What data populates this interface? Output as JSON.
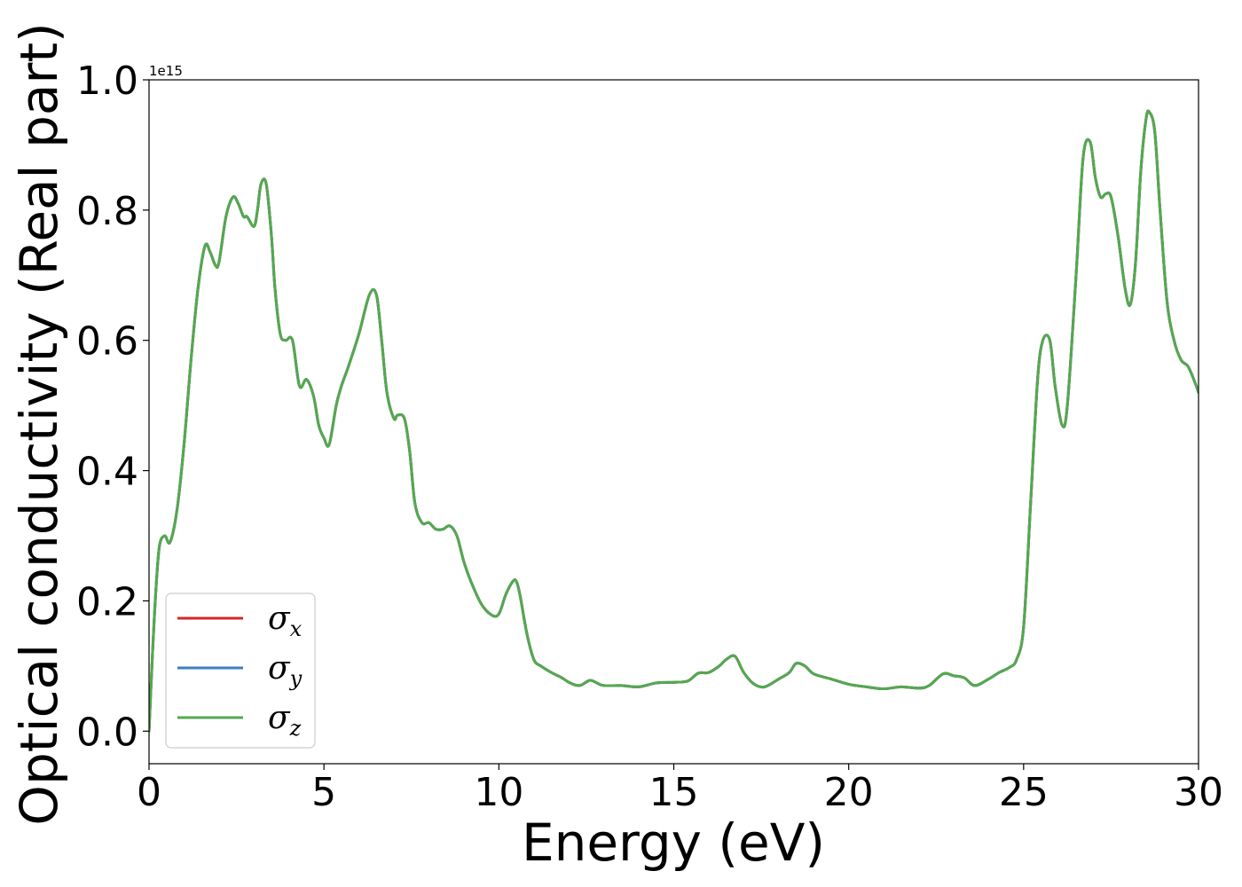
{
  "chart_data": {
    "type": "line",
    "xlabel": "Energy (eV)",
    "ylabel": "Optical conductivity (Real part)",
    "y_offset_text": "1e15",
    "xlim": [
      0,
      30
    ],
    "ylim": [
      -0.05,
      1.0
    ],
    "xticks": [
      0,
      5,
      10,
      15,
      20,
      25,
      30
    ],
    "xtick_labels": [
      "0",
      "5",
      "10",
      "15",
      "20",
      "25",
      "30"
    ],
    "yticks": [
      0.0,
      0.2,
      0.4,
      0.6,
      0.8,
      1.0
    ],
    "ytick_labels": [
      "0.0",
      "0.2",
      "0.4",
      "0.6",
      "0.8",
      "1.0"
    ],
    "grid": false,
    "legend_position": "lower-left",
    "series": [
      {
        "name": "σx",
        "symbol": "σ",
        "subscript": "x",
        "color": "#d62728",
        "x": [
          0,
          0.1,
          0.2,
          0.3,
          0.45,
          0.6,
          0.8,
          1.0,
          1.2,
          1.4,
          1.6,
          1.75,
          1.9,
          2.0,
          2.2,
          2.4,
          2.55,
          2.7,
          2.8,
          3.0,
          3.1,
          3.2,
          3.35,
          3.5,
          3.6,
          3.75,
          3.9,
          4.1,
          4.3,
          4.5,
          4.7,
          4.85,
          5.0,
          5.15,
          5.35,
          5.5,
          5.7,
          6.0,
          6.3,
          6.5,
          6.65,
          6.8,
          7.0,
          7.1,
          7.3,
          7.45,
          7.6,
          7.8,
          8.0,
          8.2,
          8.4,
          8.6,
          8.8,
          9.0,
          9.2,
          9.5,
          9.8,
          10.0,
          10.2,
          10.4,
          10.5,
          10.6,
          10.8,
          11.0,
          11.2,
          11.5,
          11.8,
          12.0,
          12.3,
          12.6,
          12.8,
          13.0,
          13.5,
          14.0,
          14.5,
          15.0,
          15.4,
          15.7,
          16.0,
          16.3,
          16.5,
          16.75,
          17.0,
          17.3,
          17.6,
          18.0,
          18.3,
          18.5,
          18.75,
          19.0,
          19.5,
          20.0,
          20.5,
          21.0,
          21.5,
          22.0,
          22.3,
          22.7,
          23.0,
          23.3,
          23.6,
          24.0,
          24.3,
          24.6,
          24.8,
          25.0,
          25.2,
          25.4,
          25.55,
          25.75,
          25.9,
          26.1,
          26.25,
          26.5,
          26.7,
          26.9,
          27.05,
          27.2,
          27.35,
          27.5,
          27.7,
          27.9,
          28.05,
          28.2,
          28.35,
          28.5,
          28.6,
          28.75,
          28.9,
          29.1,
          29.3,
          29.5,
          29.7,
          29.9,
          30.0
        ],
        "y": [
          0.0,
          0.12,
          0.22,
          0.285,
          0.3,
          0.29,
          0.34,
          0.44,
          0.57,
          0.68,
          0.745,
          0.735,
          0.715,
          0.72,
          0.79,
          0.82,
          0.81,
          0.79,
          0.79,
          0.775,
          0.8,
          0.84,
          0.84,
          0.76,
          0.68,
          0.61,
          0.6,
          0.6,
          0.53,
          0.54,
          0.515,
          0.47,
          0.45,
          0.44,
          0.5,
          0.53,
          0.56,
          0.61,
          0.67,
          0.67,
          0.6,
          0.52,
          0.48,
          0.485,
          0.48,
          0.43,
          0.35,
          0.32,
          0.32,
          0.31,
          0.31,
          0.315,
          0.3,
          0.26,
          0.23,
          0.195,
          0.178,
          0.18,
          0.21,
          0.23,
          0.23,
          0.21,
          0.15,
          0.11,
          0.1,
          0.09,
          0.082,
          0.075,
          0.07,
          0.078,
          0.074,
          0.07,
          0.07,
          0.068,
          0.074,
          0.075,
          0.077,
          0.089,
          0.09,
          0.1,
          0.11,
          0.115,
          0.09,
          0.072,
          0.068,
          0.08,
          0.09,
          0.104,
          0.1,
          0.088,
          0.08,
          0.072,
          0.068,
          0.065,
          0.068,
          0.066,
          0.07,
          0.088,
          0.085,
          0.082,
          0.07,
          0.08,
          0.09,
          0.098,
          0.11,
          0.16,
          0.35,
          0.54,
          0.6,
          0.6,
          0.53,
          0.47,
          0.5,
          0.7,
          0.88,
          0.905,
          0.85,
          0.82,
          0.825,
          0.82,
          0.76,
          0.68,
          0.655,
          0.72,
          0.86,
          0.94,
          0.95,
          0.92,
          0.8,
          0.66,
          0.6,
          0.57,
          0.56,
          0.535,
          0.52
        ]
      },
      {
        "name": "σy",
        "symbol": "σ",
        "subscript": "y",
        "color": "#3a7fbf",
        "x": [
          0,
          0.1,
          0.2,
          0.3,
          0.45,
          0.6,
          0.8,
          1.0,
          1.2,
          1.4,
          1.6,
          1.75,
          1.9,
          2.0,
          2.2,
          2.4,
          2.55,
          2.7,
          2.8,
          3.0,
          3.1,
          3.2,
          3.35,
          3.5,
          3.6,
          3.75,
          3.9,
          4.1,
          4.3,
          4.5,
          4.7,
          4.85,
          5.0,
          5.15,
          5.35,
          5.5,
          5.7,
          6.0,
          6.3,
          6.5,
          6.65,
          6.8,
          7.0,
          7.1,
          7.3,
          7.45,
          7.6,
          7.8,
          8.0,
          8.2,
          8.4,
          8.6,
          8.8,
          9.0,
          9.2,
          9.5,
          9.8,
          10.0,
          10.2,
          10.4,
          10.5,
          10.6,
          10.8,
          11.0,
          11.2,
          11.5,
          11.8,
          12.0,
          12.3,
          12.6,
          12.8,
          13.0,
          13.5,
          14.0,
          14.5,
          15.0,
          15.4,
          15.7,
          16.0,
          16.3,
          16.5,
          16.75,
          17.0,
          17.3,
          17.6,
          18.0,
          18.3,
          18.5,
          18.75,
          19.0,
          19.5,
          20.0,
          20.5,
          21.0,
          21.5,
          22.0,
          22.3,
          22.7,
          23.0,
          23.3,
          23.6,
          24.0,
          24.3,
          24.6,
          24.8,
          25.0,
          25.2,
          25.4,
          25.55,
          25.75,
          25.9,
          26.1,
          26.25,
          26.5,
          26.7,
          26.9,
          27.05,
          27.2,
          27.35,
          27.5,
          27.7,
          27.9,
          28.05,
          28.2,
          28.35,
          28.5,
          28.6,
          28.75,
          28.9,
          29.1,
          29.3,
          29.5,
          29.7,
          29.9,
          30.0
        ],
        "y": [
          0.0,
          0.12,
          0.22,
          0.285,
          0.3,
          0.29,
          0.34,
          0.44,
          0.57,
          0.68,
          0.745,
          0.735,
          0.715,
          0.72,
          0.79,
          0.82,
          0.81,
          0.79,
          0.79,
          0.775,
          0.8,
          0.84,
          0.84,
          0.76,
          0.68,
          0.61,
          0.6,
          0.6,
          0.53,
          0.54,
          0.515,
          0.47,
          0.45,
          0.44,
          0.5,
          0.53,
          0.56,
          0.61,
          0.67,
          0.67,
          0.6,
          0.52,
          0.48,
          0.485,
          0.48,
          0.43,
          0.35,
          0.32,
          0.32,
          0.31,
          0.31,
          0.315,
          0.3,
          0.26,
          0.23,
          0.195,
          0.178,
          0.18,
          0.21,
          0.23,
          0.23,
          0.21,
          0.15,
          0.11,
          0.1,
          0.09,
          0.082,
          0.075,
          0.07,
          0.078,
          0.074,
          0.07,
          0.07,
          0.068,
          0.074,
          0.075,
          0.077,
          0.089,
          0.09,
          0.1,
          0.11,
          0.115,
          0.09,
          0.072,
          0.068,
          0.08,
          0.09,
          0.104,
          0.1,
          0.088,
          0.08,
          0.072,
          0.068,
          0.065,
          0.068,
          0.066,
          0.07,
          0.088,
          0.085,
          0.082,
          0.07,
          0.08,
          0.09,
          0.098,
          0.11,
          0.16,
          0.35,
          0.54,
          0.6,
          0.6,
          0.53,
          0.47,
          0.5,
          0.7,
          0.88,
          0.905,
          0.85,
          0.82,
          0.825,
          0.82,
          0.76,
          0.68,
          0.655,
          0.72,
          0.86,
          0.94,
          0.95,
          0.92,
          0.8,
          0.66,
          0.6,
          0.57,
          0.56,
          0.535,
          0.52
        ]
      },
      {
        "name": "σz",
        "symbol": "σ",
        "subscript": "z",
        "color": "#55a84f",
        "x": [
          0,
          0.1,
          0.2,
          0.3,
          0.45,
          0.6,
          0.8,
          1.0,
          1.2,
          1.4,
          1.6,
          1.75,
          1.9,
          2.0,
          2.2,
          2.4,
          2.55,
          2.7,
          2.8,
          3.0,
          3.1,
          3.2,
          3.35,
          3.5,
          3.6,
          3.75,
          3.9,
          4.1,
          4.3,
          4.5,
          4.7,
          4.85,
          5.0,
          5.15,
          5.35,
          5.5,
          5.7,
          6.0,
          6.3,
          6.5,
          6.65,
          6.8,
          7.0,
          7.1,
          7.3,
          7.45,
          7.6,
          7.8,
          8.0,
          8.2,
          8.4,
          8.6,
          8.8,
          9.0,
          9.2,
          9.5,
          9.8,
          10.0,
          10.2,
          10.4,
          10.5,
          10.6,
          10.8,
          11.0,
          11.2,
          11.5,
          11.8,
          12.0,
          12.3,
          12.6,
          12.8,
          13.0,
          13.5,
          14.0,
          14.5,
          15.0,
          15.4,
          15.7,
          16.0,
          16.3,
          16.5,
          16.75,
          17.0,
          17.3,
          17.6,
          18.0,
          18.3,
          18.5,
          18.75,
          19.0,
          19.5,
          20.0,
          20.5,
          21.0,
          21.5,
          22.0,
          22.3,
          22.7,
          23.0,
          23.3,
          23.6,
          24.0,
          24.3,
          24.6,
          24.8,
          25.0,
          25.2,
          25.4,
          25.55,
          25.75,
          25.9,
          26.1,
          26.25,
          26.5,
          26.7,
          26.9,
          27.05,
          27.2,
          27.35,
          27.5,
          27.7,
          27.9,
          28.05,
          28.2,
          28.35,
          28.5,
          28.6,
          28.75,
          28.9,
          29.1,
          29.3,
          29.5,
          29.7,
          29.9,
          30.0
        ],
        "y": [
          0.0,
          0.12,
          0.22,
          0.285,
          0.3,
          0.29,
          0.34,
          0.44,
          0.57,
          0.68,
          0.745,
          0.735,
          0.715,
          0.72,
          0.79,
          0.82,
          0.81,
          0.79,
          0.79,
          0.775,
          0.8,
          0.84,
          0.84,
          0.76,
          0.68,
          0.61,
          0.6,
          0.6,
          0.53,
          0.54,
          0.515,
          0.47,
          0.45,
          0.44,
          0.5,
          0.53,
          0.56,
          0.61,
          0.67,
          0.67,
          0.6,
          0.52,
          0.48,
          0.485,
          0.48,
          0.43,
          0.35,
          0.32,
          0.32,
          0.31,
          0.31,
          0.315,
          0.3,
          0.26,
          0.23,
          0.195,
          0.178,
          0.18,
          0.21,
          0.23,
          0.23,
          0.21,
          0.15,
          0.11,
          0.1,
          0.09,
          0.082,
          0.075,
          0.07,
          0.078,
          0.074,
          0.07,
          0.07,
          0.068,
          0.074,
          0.075,
          0.077,
          0.089,
          0.09,
          0.1,
          0.11,
          0.115,
          0.09,
          0.072,
          0.068,
          0.08,
          0.09,
          0.104,
          0.1,
          0.088,
          0.08,
          0.072,
          0.068,
          0.065,
          0.068,
          0.066,
          0.07,
          0.088,
          0.085,
          0.082,
          0.07,
          0.08,
          0.09,
          0.098,
          0.11,
          0.16,
          0.35,
          0.54,
          0.6,
          0.6,
          0.53,
          0.47,
          0.5,
          0.7,
          0.88,
          0.905,
          0.85,
          0.82,
          0.825,
          0.82,
          0.76,
          0.68,
          0.655,
          0.72,
          0.86,
          0.94,
          0.95,
          0.92,
          0.8,
          0.66,
          0.6,
          0.57,
          0.56,
          0.535,
          0.52
        ]
      }
    ]
  }
}
